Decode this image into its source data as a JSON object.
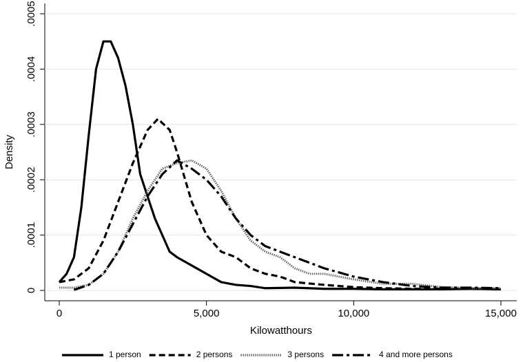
{
  "chart_data": {
    "type": "line",
    "xlabel": "Kilowatthours",
    "ylabel": "Density",
    "xlim": [
      0,
      15000
    ],
    "ylim": [
      0,
      0.0005
    ],
    "xticks": [
      0,
      {
        "value": 5000,
        "label": "5,000"
      },
      {
        "value": 10000,
        "label": "10,000"
      },
      {
        "value": 15000,
        "label": "15,000"
      }
    ],
    "yticks": [
      0,
      {
        "value": 0.0001,
        "label": ".0001"
      },
      {
        "value": 0.0002,
        "label": ".0002"
      },
      {
        "value": 0.0003,
        "label": ".0003"
      },
      {
        "value": 0.0004,
        "label": ".0004"
      },
      {
        "value": 0.0005,
        "label": ".0005"
      }
    ],
    "grid": true,
    "legend": "bottom",
    "series": [
      {
        "name": "1 person",
        "color": "#000000",
        "dash": "solid",
        "x": [
          0,
          250,
          500,
          750,
          1000,
          1250,
          1500,
          1750,
          2000,
          2250,
          2500,
          2750,
          3000,
          3250,
          3500,
          3750,
          4000,
          4500,
          5000,
          5500,
          6000,
          6500,
          7000,
          8000,
          9000,
          10000,
          11000,
          12000,
          13000,
          14000,
          15000
        ],
        "values": [
          1.5e-05,
          3e-05,
          6e-05,
          0.00015,
          0.00028,
          0.0004,
          0.00045,
          0.00045,
          0.00042,
          0.00037,
          0.0003,
          0.00021,
          0.00017,
          0.00013,
          0.0001,
          7e-05,
          6e-05,
          4.5e-05,
          3e-05,
          1.5e-05,
          1e-05,
          8e-06,
          4e-06,
          5e-06,
          3e-06,
          3e-06,
          2e-06,
          2e-06,
          2e-06,
          3e-06,
          2e-06
        ]
      },
      {
        "name": "2 persons",
        "color": "#000000",
        "dash": "dashed",
        "x": [
          0,
          500,
          1000,
          1500,
          2000,
          2500,
          3000,
          3350,
          3750,
          4000,
          4500,
          5000,
          5500,
          6000,
          6500,
          7000,
          7500,
          8000,
          9000,
          10000,
          11000,
          12000,
          13000,
          14000,
          15000
        ],
        "values": [
          1.5e-05,
          2e-05,
          4e-05,
          9e-05,
          0.00016,
          0.00023,
          0.00029,
          0.00031,
          0.00029,
          0.00025,
          0.00016,
          0.0001,
          7e-05,
          6e-05,
          4e-05,
          3e-05,
          2.5e-05,
          1.5e-05,
          1e-05,
          6e-06,
          4e-06,
          3e-06,
          3e-06,
          3e-06,
          2e-06
        ]
      },
      {
        "name": "3 persons",
        "color": "#666666",
        "dash": "dotted",
        "x": [
          0,
          500,
          1000,
          1500,
          2000,
          2500,
          3000,
          3500,
          4000,
          4500,
          5000,
          5500,
          6000,
          6500,
          7000,
          7500,
          8000,
          8500,
          9000,
          10000,
          11000,
          12000,
          13000,
          14000,
          15000
        ],
        "values": [
          5e-06,
          5e-06,
          1e-05,
          3e-05,
          7e-05,
          0.00013,
          0.00018,
          0.00022,
          0.00023,
          0.000235,
          0.00022,
          0.00018,
          0.00013,
          9e-05,
          7e-05,
          6e-05,
          4e-05,
          3e-05,
          3e-05,
          2e-05,
          1.2e-05,
          1.2e-05,
          6e-06,
          4e-06,
          4e-06
        ]
      },
      {
        "name": "4 and more persons",
        "color": "#000000",
        "dash": "longdash",
        "x": [
          500,
          1000,
          1500,
          2000,
          2500,
          3000,
          3500,
          4000,
          4500,
          5000,
          5500,
          6000,
          6500,
          7000,
          7500,
          8000,
          8500,
          9000,
          10000,
          11000,
          12000,
          13000,
          14000,
          15000
        ],
        "values": [
          1e-06,
          1e-05,
          3e-05,
          7e-05,
          0.00012,
          0.00017,
          0.00021,
          0.000235,
          0.00022,
          0.0002,
          0.00017,
          0.00013,
          0.0001,
          8e-05,
          7e-05,
          6e-05,
          5e-05,
          4e-05,
          2.5e-05,
          1.5e-05,
          8e-06,
          5e-06,
          5e-06,
          4e-06
        ]
      }
    ]
  }
}
